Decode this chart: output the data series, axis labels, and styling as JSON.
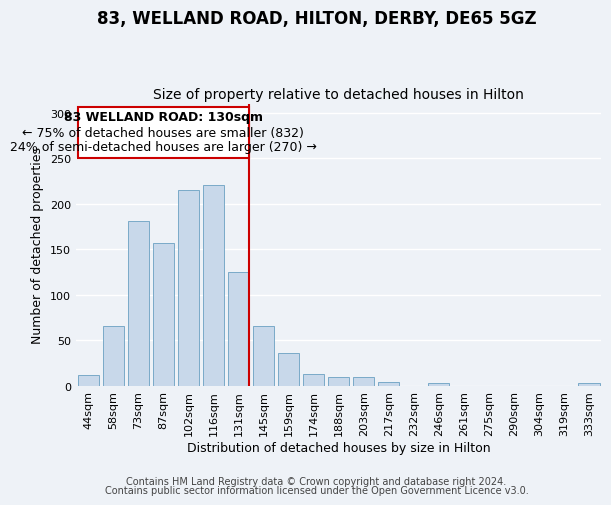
{
  "title": "83, WELLAND ROAD, HILTON, DERBY, DE65 5GZ",
  "subtitle": "Size of property relative to detached houses in Hilton",
  "xlabel": "Distribution of detached houses by size in Hilton",
  "ylabel": "Number of detached properties",
  "footer_line1": "Contains HM Land Registry data © Crown copyright and database right 2024.",
  "footer_line2": "Contains public sector information licensed under the Open Government Licence v3.0.",
  "bar_labels": [
    "44sqm",
    "58sqm",
    "73sqm",
    "87sqm",
    "102sqm",
    "116sqm",
    "131sqm",
    "145sqm",
    "159sqm",
    "174sqm",
    "188sqm",
    "203sqm",
    "217sqm",
    "232sqm",
    "246sqm",
    "261sqm",
    "275sqm",
    "290sqm",
    "304sqm",
    "319sqm",
    "333sqm"
  ],
  "bar_values": [
    12,
    65,
    181,
    157,
    215,
    220,
    125,
    65,
    36,
    13,
    9,
    9,
    4,
    0,
    3,
    0,
    0,
    0,
    0,
    0,
    3
  ],
  "bar_color": "#c8d8ea",
  "bar_edge_color": "#7aaac8",
  "highlight_bar_index": 6,
  "highlight_line_color": "#cc0000",
  "annotation_line1": "83 WELLAND ROAD: 130sqm",
  "annotation_line2": "← 75% of detached houses are smaller (832)",
  "annotation_line3": "24% of semi-detached houses are larger (270) →",
  "annotation_box_edge_color": "#cc0000",
  "ylim": [
    0,
    310
  ],
  "yticks": [
    0,
    50,
    100,
    150,
    200,
    250,
    300
  ],
  "background_color": "#eef2f7",
  "grid_color": "#ffffff",
  "title_fontsize": 12,
  "subtitle_fontsize": 10,
  "axis_label_fontsize": 9,
  "tick_fontsize": 8,
  "annotation_fontsize": 9,
  "footer_fontsize": 7
}
